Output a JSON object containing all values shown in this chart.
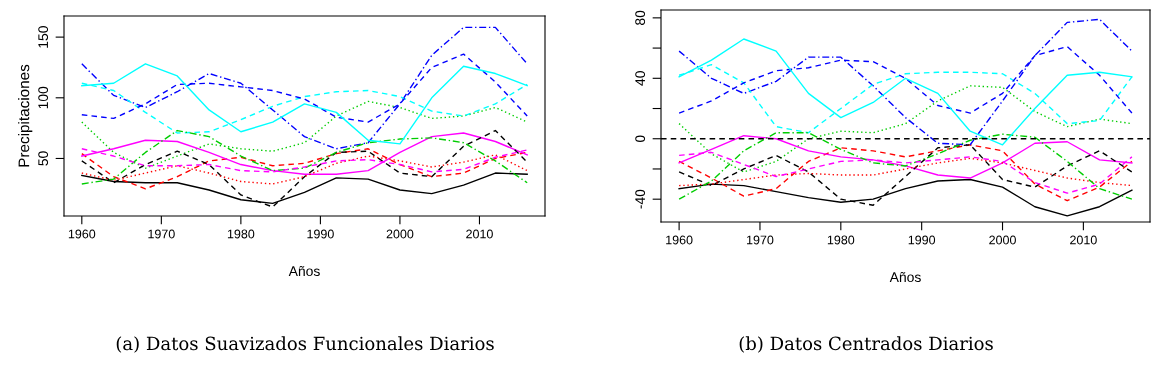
{
  "chart_data": [
    {
      "type": "line",
      "xlabel": "Años",
      "ylabel": "Precipitaciones",
      "xlim": [
        1957.76,
        2018.24
      ],
      "ylim": [
        2.6,
        167.4
      ],
      "xticks": [
        1960,
        1970,
        1980,
        1990,
        2000,
        2010
      ],
      "yticks": [
        50,
        100,
        150
      ],
      "grid": false,
      "legend": false,
      "x": [
        1960,
        1964,
        1968,
        1972,
        1976,
        1980,
        1984,
        1988,
        1992,
        1996,
        2000,
        2004,
        2008,
        2012,
        2016
      ],
      "annotations": [
        "(a) Datos Suavizados Funcionales Diarios"
      ],
      "series": [
        {
          "color": "#000000",
          "line_style": "solid",
          "values": [
            36,
            31,
            30,
            30,
            24,
            16,
            13,
            22,
            34,
            33,
            24,
            21,
            28,
            38,
            37
          ]
        },
        {
          "color": "#ff0000",
          "line_style": "dashed",
          "values": [
            54,
            35,
            25,
            35,
            48,
            51,
            44,
            46,
            54,
            58,
            45,
            35,
            38,
            50,
            55
          ]
        },
        {
          "color": "#00cd00",
          "line_style": "dotted",
          "values": [
            80,
            55,
            42,
            52,
            62,
            58,
            56,
            63,
            85,
            97,
            92,
            83,
            85,
            92,
            80
          ]
        },
        {
          "color": "#0000ff",
          "line_style": "dashdot",
          "values": [
            128,
            102,
            92,
            105,
            120,
            112,
            90,
            68,
            58,
            63,
            95,
            135,
            158,
            158,
            128
          ]
        },
        {
          "color": "#00ffff",
          "line_style": "dashed",
          "values": [
            112,
            106,
            88,
            71,
            72,
            82,
            93,
            101,
            105,
            106,
            101,
            89,
            85,
            95,
            111
          ]
        },
        {
          "color": "#ff00ff",
          "line_style": "solid",
          "values": [
            52,
            58,
            65,
            64,
            55,
            45,
            40,
            37,
            37,
            40,
            55,
            68,
            71,
            64,
            53
          ]
        },
        {
          "color": "#000000",
          "line_style": "dashed",
          "values": [
            48,
            30,
            45,
            56,
            45,
            20,
            10,
            35,
            55,
            56,
            38,
            35,
            60,
            73,
            47
          ]
        },
        {
          "color": "#ff0000",
          "line_style": "dotted",
          "values": [
            38,
            32,
            38,
            44,
            38,
            31,
            29,
            35,
            46,
            52,
            48,
            43,
            47,
            53,
            40
          ]
        },
        {
          "color": "#00cd00",
          "line_style": "dashdot",
          "values": [
            29,
            33,
            55,
            73,
            68,
            52,
            40,
            42,
            55,
            63,
            66,
            67,
            63,
            48,
            30
          ]
        },
        {
          "color": "#0000ff",
          "line_style": "dashed",
          "values": [
            86,
            83,
            95,
            111,
            112,
            109,
            106,
            99,
            84,
            80,
            95,
            125,
            136,
            113,
            85
          ]
        },
        {
          "color": "#00ffff",
          "line_style": "solid",
          "values": [
            110,
            112,
            128,
            118,
            90,
            72,
            80,
            95,
            88,
            65,
            62,
            100,
            126,
            120,
            110
          ]
        },
        {
          "color": "#ff00ff",
          "line_style": "dashed",
          "values": [
            58,
            52,
            44,
            44,
            45,
            40,
            39,
            43,
            48,
            49,
            45,
            39,
            41,
            51,
            57
          ]
        }
      ]
    },
    {
      "type": "line",
      "xlabel": "Años",
      "xlim": [
        1957.76,
        2018.24
      ],
      "ylim": [
        -55.1,
        85.2
      ],
      "xticks": [
        1960,
        1970,
        1980,
        1990,
        2000,
        2010
      ],
      "yticks": [
        -40,
        {
          "value": -20,
          "label": null
        },
        0,
        {
          "value": 20,
          "label": null
        },
        40,
        {
          "value": 60,
          "label": null
        },
        80
      ],
      "grid": false,
      "legend": false,
      "x": [
        1960,
        1964,
        1968,
        1972,
        1976,
        1980,
        1984,
        1988,
        1992,
        1996,
        2000,
        2004,
        2008,
        2012,
        2016
      ],
      "ref_lines": [
        {
          "axis": "y",
          "value": 0,
          "label": null,
          "color": "#000000",
          "line_style": "dashed"
        }
      ],
      "annotations": [
        "(b) Datos Centrados Diarios"
      ],
      "series": [
        {
          "color": "#000000",
          "line_style": "solid",
          "values": [
            -33,
            -30,
            -31,
            -35,
            -39,
            -42,
            -40,
            -33,
            -28,
            -27,
            -32,
            -45,
            -51,
            -45,
            -34
          ]
        },
        {
          "color": "#ff0000",
          "line_style": "dashed",
          "values": [
            -15,
            -26,
            -38,
            -33,
            -15,
            -6,
            -8,
            -12,
            -8,
            -4,
            -8,
            -30,
            -41,
            -32,
            -15
          ]
        },
        {
          "color": "#00cd00",
          "line_style": "dotted",
          "values": [
            10,
            -10,
            -22,
            -15,
            0,
            5,
            4,
            10,
            25,
            35,
            34,
            18,
            8,
            13,
            10
          ]
        },
        {
          "color": "#0000ff",
          "line_style": "dashdot",
          "values": [
            58,
            40,
            30,
            38,
            54,
            54,
            35,
            14,
            -3,
            -4,
            25,
            55,
            77,
            79,
            58
          ]
        },
        {
          "color": "#00ffff",
          "line_style": "dashed",
          "values": [
            42,
            49,
            37,
            8,
            4,
            20,
            36,
            43,
            44,
            44,
            43,
            30,
            10,
            12,
            41
          ]
        },
        {
          "color": "#ff00ff",
          "line_style": "solid",
          "values": [
            -16,
            -7,
            2,
            0,
            -8,
            -12,
            -14,
            -18,
            -24,
            -26,
            -16,
            -3,
            -2,
            -14,
            -16
          ]
        },
        {
          "color": "#000000",
          "line_style": "dashed",
          "values": [
            -22,
            -31,
            -20,
            -11,
            -22,
            -40,
            -44,
            -25,
            -6,
            -4,
            -27,
            -32,
            -18,
            -8,
            -22
          ]
        },
        {
          "color": "#ff0000",
          "line_style": "dotted",
          "values": [
            -31,
            -30,
            -27,
            -24,
            -23,
            -24,
            -24,
            -20,
            -16,
            -13,
            -16,
            -21,
            -26,
            -29,
            -31
          ]
        },
        {
          "color": "#00cd00",
          "line_style": "dashdot",
          "values": [
            -40,
            -28,
            -8,
            4,
            4,
            -7,
            -16,
            -18,
            -10,
            -1,
            3,
            1,
            -15,
            -33,
            -40
          ]
        },
        {
          "color": "#0000ff",
          "line_style": "dashed",
          "values": [
            17,
            25,
            37,
            45,
            47,
            52,
            51,
            40,
            22,
            17,
            30,
            55,
            61,
            42,
            17
          ]
        },
        {
          "color": "#00ffff",
          "line_style": "solid",
          "values": [
            41,
            52,
            66,
            58,
            30,
            14,
            24,
            40,
            30,
            5,
            -4,
            20,
            42,
            44,
            41
          ]
        },
        {
          "color": "#ff00ff",
          "line_style": "dashed",
          "values": [
            -11,
            -9,
            -17,
            -25,
            -20,
            -15,
            -14,
            -16,
            -14,
            -12,
            -15,
            -29,
            -36,
            -30,
            -12
          ]
        }
      ]
    }
  ]
}
